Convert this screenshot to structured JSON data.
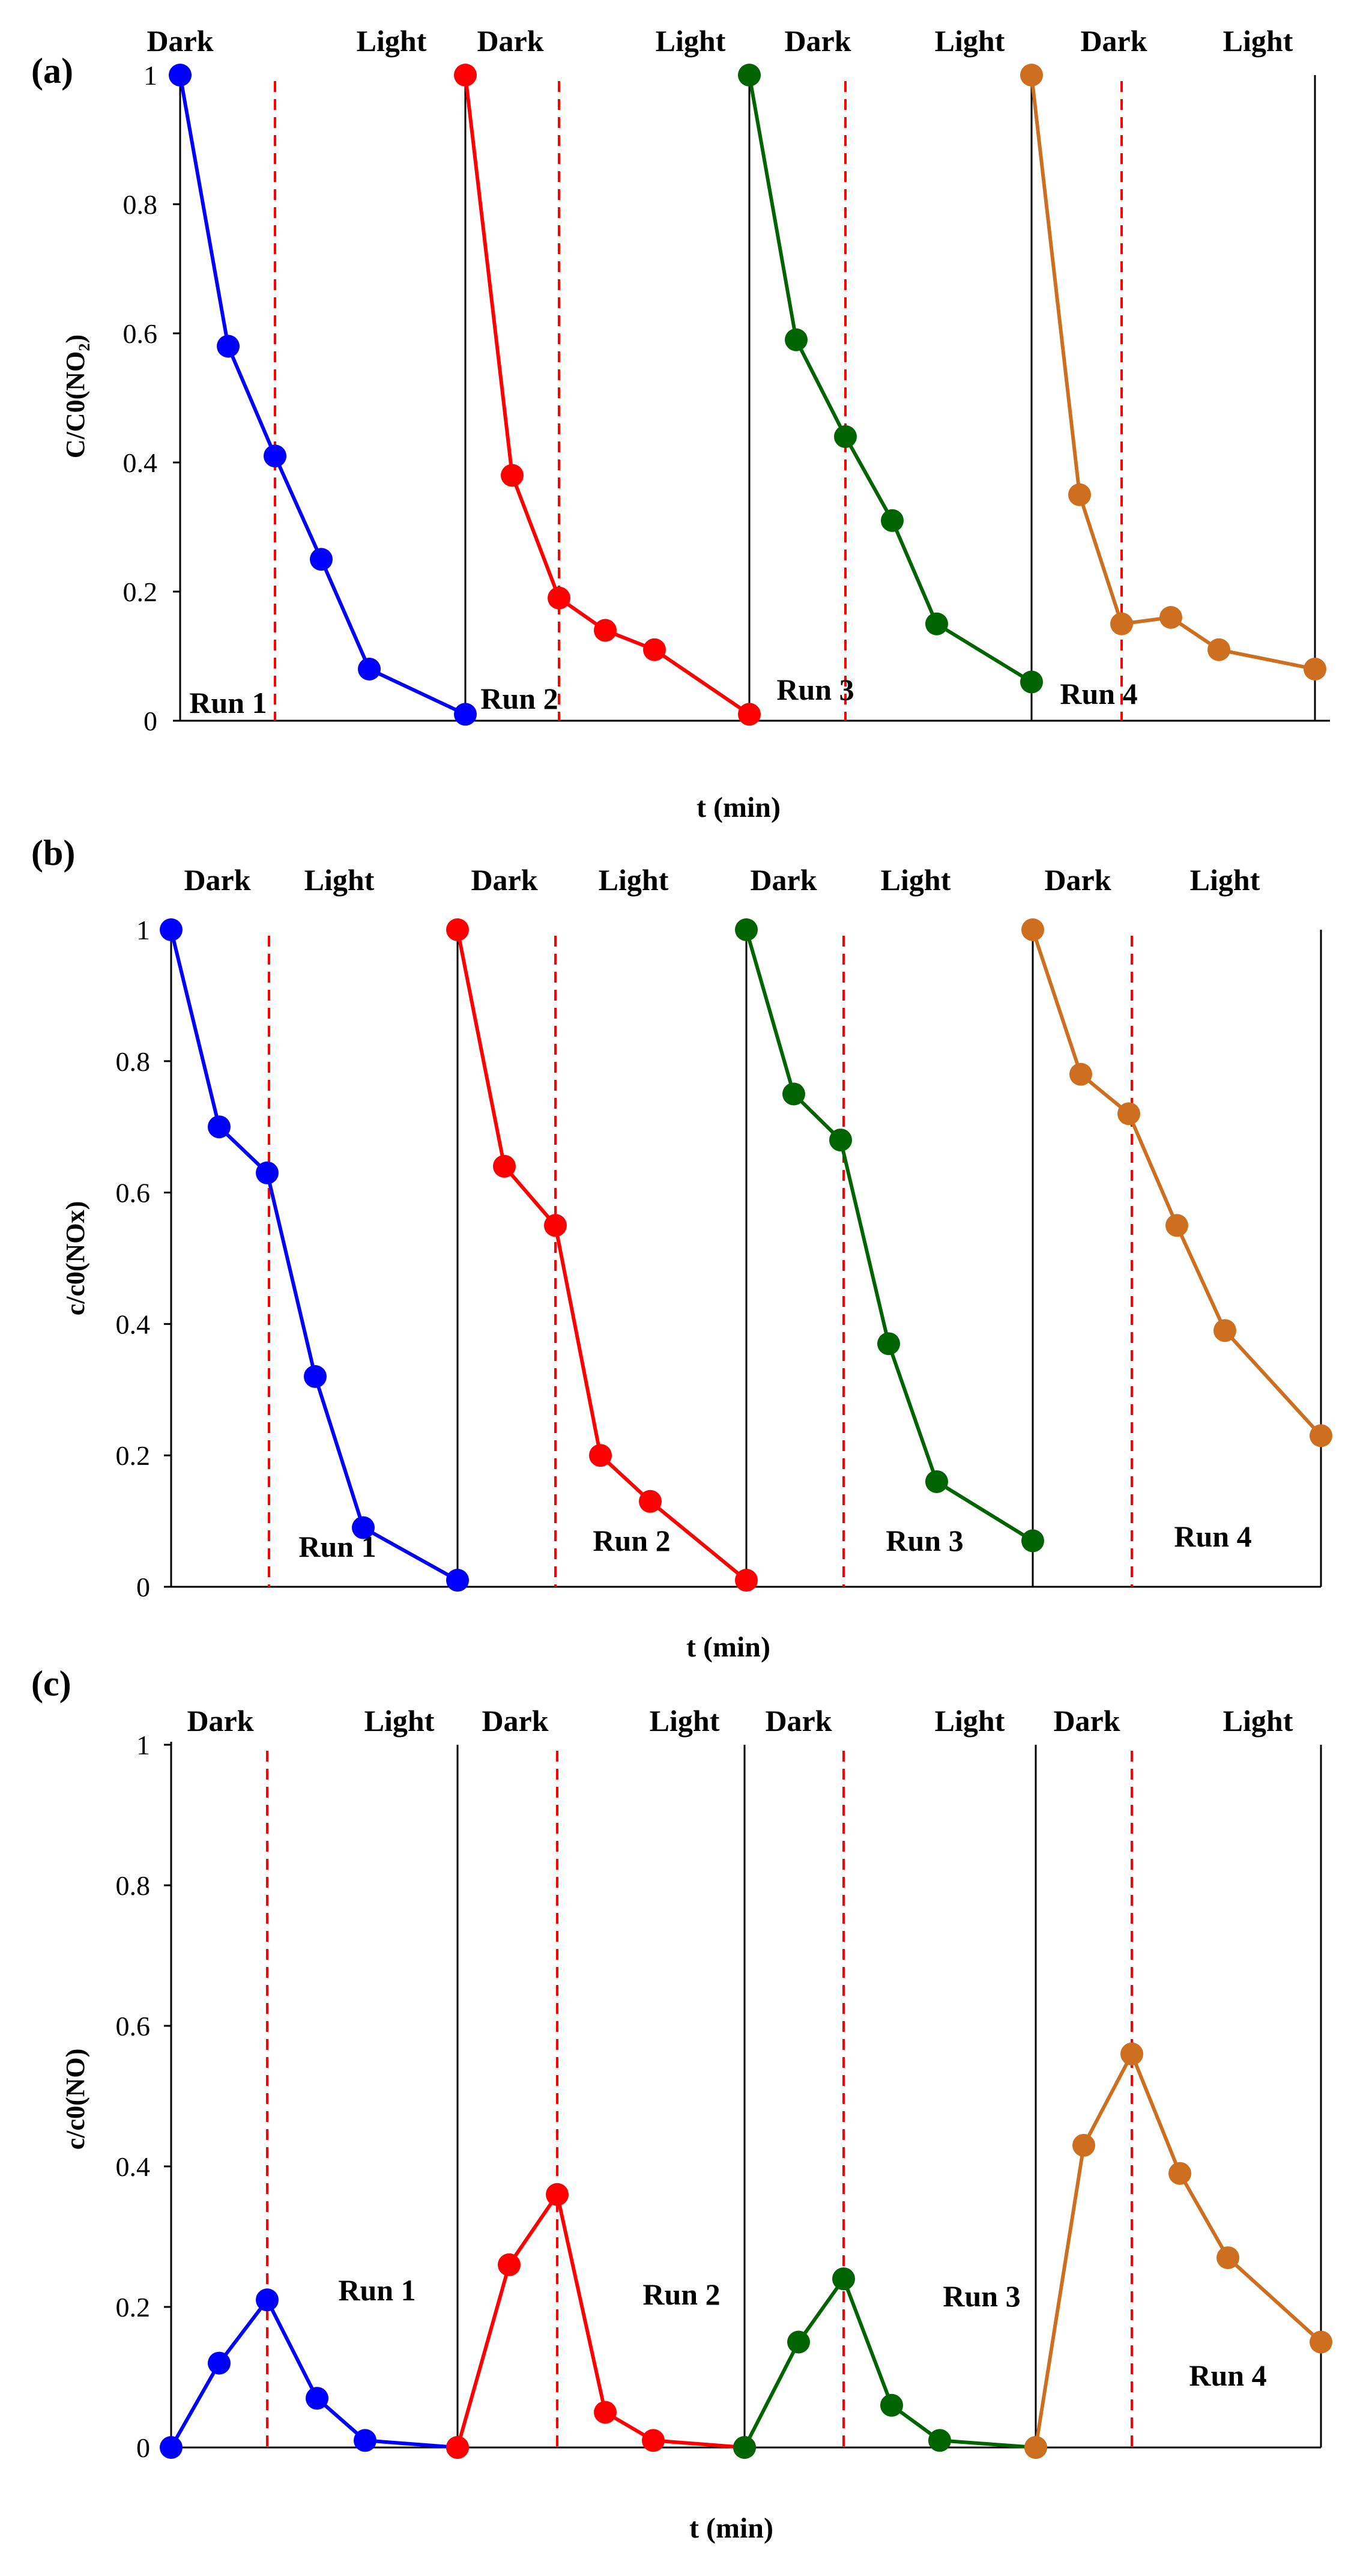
{
  "colors": {
    "run1": "#0000ff",
    "run2": "#ff0000",
    "run3": "#006400",
    "run4": "#cd6f1f",
    "divider": "#000000",
    "dashed": "#ff0000"
  },
  "chart_data": [
    {
      "type": "line",
      "panel": "(a)",
      "ylabel": "C/C0(NO₂)",
      "xlabel": "t (min)",
      "ylim": [
        0,
        1
      ],
      "yticks": [
        "0",
        "0.2",
        "0.4",
        "0.6",
        "0.8",
        "1"
      ],
      "phase_labels": [
        {
          "run": 1,
          "dark": "Dark",
          "light": "Light"
        },
        {
          "run": 2,
          "dark": "Dark",
          "light": "Light"
        },
        {
          "run": 3,
          "dark": "Dark",
          "light": "Light"
        },
        {
          "run": 4,
          "dark": "Dark",
          "light": "Light"
        }
      ],
      "series": [
        {
          "name": "Run 1",
          "color": "run1",
          "values": [
            1.0,
            0.58,
            0.41,
            0.25,
            0.08,
            0.01
          ]
        },
        {
          "name": "Run 2",
          "color": "run2",
          "values": [
            1.0,
            0.38,
            0.19,
            0.14,
            0.11,
            0.01
          ]
        },
        {
          "name": "Run 3",
          "color": "run3",
          "values": [
            1.0,
            0.59,
            0.44,
            0.31,
            0.15,
            0.06
          ]
        },
        {
          "name": "Run 4",
          "color": "run4",
          "values": [
            1.0,
            0.35,
            0.15,
            0.16,
            0.11,
            0.08
          ]
        }
      ]
    },
    {
      "type": "line",
      "panel": "(b)",
      "ylabel": "c/c0(NOx)",
      "xlabel": "t (min)",
      "ylim": [
        0,
        1
      ],
      "yticks": [
        "0",
        "0.2",
        "0.4",
        "0.6",
        "0.8",
        "1"
      ],
      "phase_labels": [
        {
          "run": 1,
          "dark": "Dark",
          "light": "Light"
        },
        {
          "run": 2,
          "dark": "Dark",
          "light": "Light"
        },
        {
          "run": 3,
          "dark": "Dark",
          "light": "Light"
        },
        {
          "run": 4,
          "dark": "Dark",
          "light": "Light"
        }
      ],
      "series": [
        {
          "name": "Run 1",
          "color": "run1",
          "values": [
            1.0,
            0.7,
            0.63,
            0.32,
            0.09,
            0.01
          ]
        },
        {
          "name": "Run 2",
          "color": "run2",
          "values": [
            1.0,
            0.64,
            0.55,
            0.2,
            0.13,
            0.01
          ]
        },
        {
          "name": "Run 3",
          "color": "run3",
          "values": [
            1.0,
            0.75,
            0.68,
            0.37,
            0.16,
            0.07
          ]
        },
        {
          "name": "Run 4",
          "color": "run4",
          "values": [
            1.0,
            0.78,
            0.72,
            0.55,
            0.39,
            0.23
          ]
        }
      ]
    },
    {
      "type": "line",
      "panel": "(c)",
      "ylabel": "c/c0(NO)",
      "xlabel": "t (min)",
      "ylim": [
        0,
        1
      ],
      "yticks": [
        "0",
        "0.2",
        "0.4",
        "0.6",
        "0.8",
        "1"
      ],
      "phase_labels": [
        {
          "run": 1,
          "dark": "Dark",
          "light": "Light"
        },
        {
          "run": 2,
          "dark": "Dark",
          "light": "Light"
        },
        {
          "run": 3,
          "dark": "Dark",
          "light": "Light"
        },
        {
          "run": 4,
          "dark": "Dark",
          "light": "Light"
        }
      ],
      "series": [
        {
          "name": "Run 1",
          "color": "run1",
          "values": [
            0.0,
            0.12,
            0.21,
            0.07,
            0.01,
            0.0
          ]
        },
        {
          "name": "Run 2",
          "color": "run2",
          "values": [
            0.0,
            0.26,
            0.36,
            0.05,
            0.01,
            0.0
          ]
        },
        {
          "name": "Run 3",
          "color": "run3",
          "values": [
            0.0,
            0.15,
            0.24,
            0.06,
            0.01,
            0.0
          ]
        },
        {
          "name": "Run 4",
          "color": "run4",
          "values": [
            0.0,
            0.43,
            0.56,
            0.39,
            0.27,
            0.15
          ]
        }
      ]
    }
  ]
}
